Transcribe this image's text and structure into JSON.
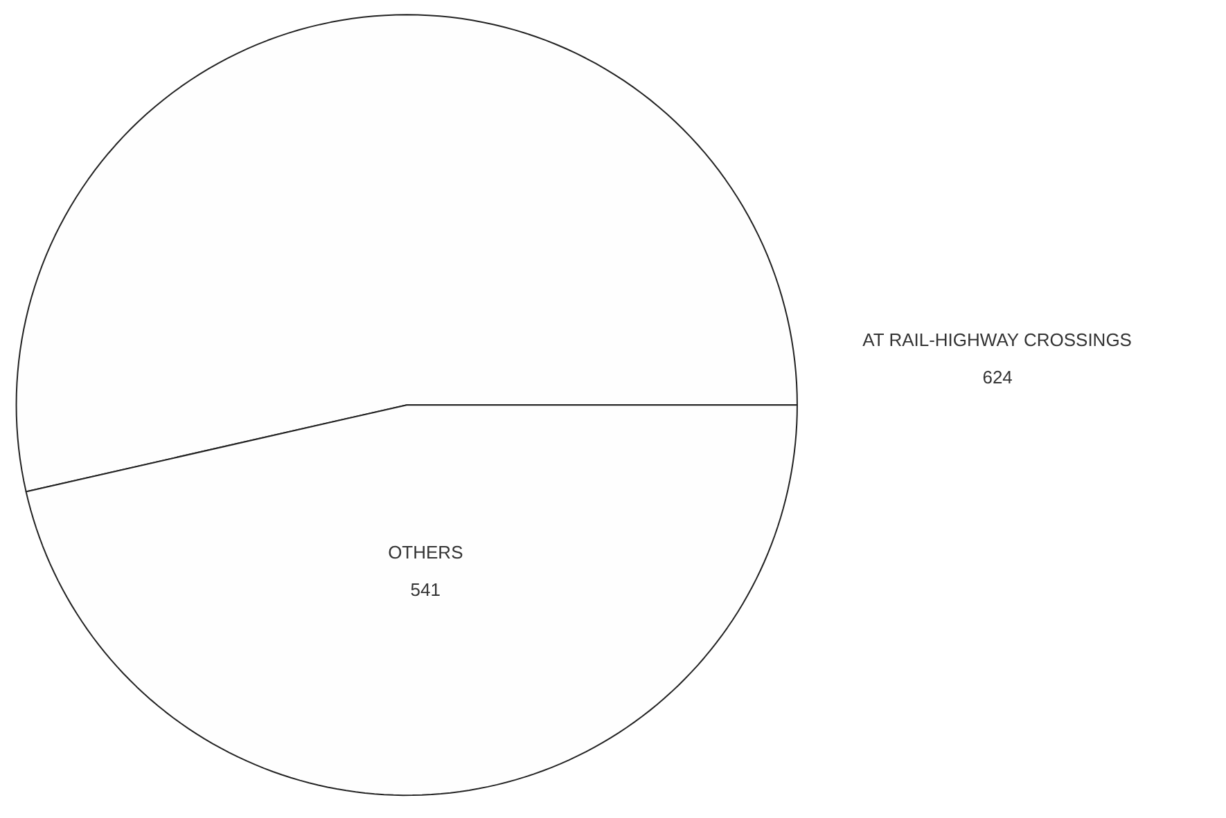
{
  "chart_data": {
    "type": "pie",
    "categories": [
      "AT RAIL-HIGHWAY CROSSINGS",
      "OTHERS"
    ],
    "values": [
      624,
      541
    ],
    "colors": [
      "#fefefe",
      "#fefefe"
    ],
    "data_labels": true
  }
}
